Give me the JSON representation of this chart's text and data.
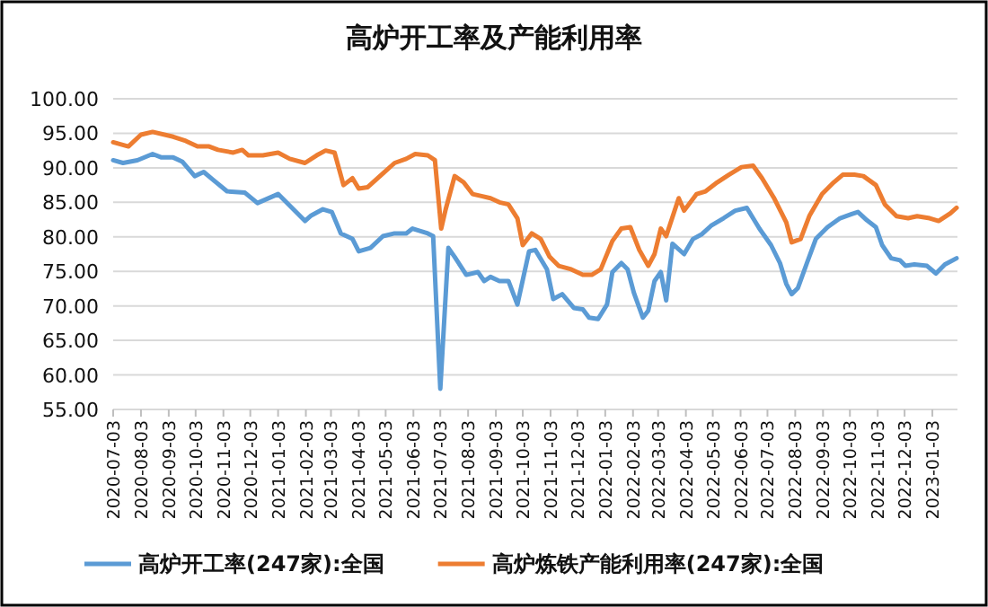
{
  "chart_data": {
    "type": "line",
    "title": "高炉开工率及产能利用率",
    "xlim": [
      "2020-07-03",
      "2023-01-31"
    ],
    "xticks": [
      "2020-07-03",
      "2020-08-03",
      "2020-09-03",
      "2020-10-03",
      "2020-11-03",
      "2020-12-03",
      "2021-01-03",
      "2021-02-03",
      "2021-03-03",
      "2021-04-03",
      "2021-05-03",
      "2021-06-03",
      "2021-07-03",
      "2021-08-03",
      "2021-09-03",
      "2021-10-03",
      "2021-11-03",
      "2021-12-03",
      "2022-01-03",
      "2022-02-03",
      "2022-03-03",
      "2022-04-03",
      "2022-05-03",
      "2022-06-03",
      "2022-07-03",
      "2022-08-03",
      "2022-09-03",
      "2022-10-03",
      "2022-11-03",
      "2022-12-03",
      "2023-01-03"
    ],
    "ylim": [
      55,
      100
    ],
    "yticks": [
      {
        "value": 55,
        "label": "55.00"
      },
      {
        "value": 60,
        "label": "60.00"
      },
      {
        "value": 65,
        "label": "65.00"
      },
      {
        "value": 70,
        "label": "70.00"
      },
      {
        "value": 75,
        "label": "75.00"
      },
      {
        "value": 80,
        "label": "80.00"
      },
      {
        "value": 85,
        "label": "85.00"
      },
      {
        "value": 90,
        "label": "90.00"
      },
      {
        "value": 95,
        "label": "95.00"
      },
      {
        "value": 100,
        "label": "100.00"
      }
    ],
    "grid": "y",
    "legend": "bottom",
    "series": [
      {
        "name": "高炉开工率(247家):全国",
        "color": "#5b9bd5",
        "x": [
          "2020-07-03",
          "2020-07-14",
          "2020-07-30",
          "2020-08-16",
          "2020-08-26",
          "2020-09-08",
          "2020-09-18",
          "2020-10-02",
          "2020-10-12",
          "2020-10-22",
          "2020-11-07",
          "2020-11-27",
          "2020-12-11",
          "2021-01-03",
          "2021-01-20",
          "2021-02-02",
          "2021-02-09",
          "2021-02-22",
          "2021-03-04",
          "2021-03-14",
          "2021-03-27",
          "2021-04-03",
          "2021-04-16",
          "2021-04-30",
          "2021-05-13",
          "2021-05-26",
          "2021-06-02",
          "2021-06-19",
          "2021-06-25",
          "2021-07-03",
          "2021-07-12",
          "2021-07-19",
          "2021-08-01",
          "2021-08-14",
          "2021-08-21",
          "2021-08-28",
          "2021-09-07",
          "2021-09-17",
          "2021-09-27",
          "2021-10-10",
          "2021-10-17",
          "2021-10-30",
          "2021-11-06",
          "2021-11-16",
          "2021-11-29",
          "2021-12-09",
          "2021-12-16",
          "2021-12-26",
          "2022-01-05",
          "2022-01-11",
          "2022-01-21",
          "2022-01-28",
          "2022-02-04",
          "2022-02-14",
          "2022-02-20",
          "2022-02-27",
          "2022-03-06",
          "2022-03-12",
          "2022-03-19",
          "2022-04-01",
          "2022-04-11",
          "2022-04-21",
          "2022-05-01",
          "2022-05-15",
          "2022-05-28",
          "2022-06-10",
          "2022-06-24",
          "2022-07-07",
          "2022-07-17",
          "2022-07-24",
          "2022-07-30",
          "2022-08-06",
          "2022-08-16",
          "2022-08-26",
          "2022-09-08",
          "2022-09-22",
          "2022-10-05",
          "2022-10-12",
          "2022-10-22",
          "2022-11-01",
          "2022-11-08",
          "2022-11-18",
          "2022-11-28",
          "2022-12-04",
          "2022-12-14",
          "2022-12-28",
          "2023-01-07",
          "2023-01-17",
          "2023-01-30"
        ],
        "values": [
          91.1,
          90.7,
          91.1,
          92.0,
          91.5,
          91.5,
          90.9,
          88.8,
          89.4,
          88.3,
          86.6,
          86.4,
          84.9,
          86.2,
          84.0,
          82.3,
          83.1,
          84.0,
          83.6,
          80.5,
          79.7,
          77.9,
          78.4,
          80.1,
          80.5,
          80.5,
          81.2,
          80.5,
          80.1,
          58.0,
          78.4,
          77.1,
          74.5,
          74.9,
          73.6,
          74.2,
          73.6,
          73.6,
          70.2,
          77.9,
          78.1,
          75.3,
          71.0,
          71.7,
          69.7,
          69.5,
          68.3,
          68.1,
          70.2,
          74.9,
          76.2,
          75.3,
          71.9,
          68.3,
          69.3,
          73.6,
          74.9,
          70.8,
          79.0,
          77.5,
          79.7,
          80.4,
          81.6,
          82.7,
          83.8,
          84.2,
          81.2,
          78.8,
          76.2,
          73.2,
          71.7,
          72.6,
          76.2,
          79.7,
          81.4,
          82.7,
          83.3,
          83.6,
          82.4,
          81.4,
          78.8,
          76.9,
          76.6,
          75.8,
          76.0,
          75.8,
          74.7,
          76.0,
          76.9
        ]
      },
      {
        "name": "高炉炼铁产能利用率(247家):全国",
        "color": "#ed7d31",
        "x": [
          "2020-07-03",
          "2020-07-20",
          "2020-08-03",
          "2020-08-16",
          "2020-09-08",
          "2020-09-22",
          "2020-10-05",
          "2020-10-18",
          "2020-10-28",
          "2020-11-14",
          "2020-11-24",
          "2020-12-01",
          "2020-12-17",
          "2021-01-03",
          "2021-01-16",
          "2021-02-02",
          "2021-02-15",
          "2021-02-25",
          "2021-03-07",
          "2021-03-17",
          "2021-03-27",
          "2021-04-03",
          "2021-04-13",
          "2021-04-30",
          "2021-05-13",
          "2021-05-26",
          "2021-06-05",
          "2021-06-19",
          "2021-06-27",
          "2021-07-04",
          "2021-07-09",
          "2021-07-19",
          "2021-07-29",
          "2021-08-08",
          "2021-08-18",
          "2021-08-28",
          "2021-09-07",
          "2021-09-17",
          "2021-09-27",
          "2021-10-03",
          "2021-10-13",
          "2021-10-23",
          "2021-11-02",
          "2021-11-12",
          "2021-11-26",
          "2021-12-09",
          "2021-12-19",
          "2021-12-29",
          "2022-01-11",
          "2022-01-21",
          "2022-01-31",
          "2022-02-10",
          "2022-02-20",
          "2022-02-27",
          "2022-03-06",
          "2022-03-12",
          "2022-03-26",
          "2022-04-01",
          "2022-04-15",
          "2022-04-25",
          "2022-05-08",
          "2022-05-21",
          "2022-06-04",
          "2022-06-17",
          "2022-06-27",
          "2022-07-10",
          "2022-07-24",
          "2022-07-30",
          "2022-08-09",
          "2022-08-19",
          "2022-09-02",
          "2022-09-15",
          "2022-09-25",
          "2022-10-08",
          "2022-10-18",
          "2022-11-01",
          "2022-11-11",
          "2022-11-24",
          "2022-12-07",
          "2022-12-17",
          "2022-12-31",
          "2023-01-10",
          "2023-01-23",
          "2023-01-30"
        ],
        "values": [
          93.7,
          93.1,
          94.8,
          95.2,
          94.5,
          93.9,
          93.1,
          93.1,
          92.6,
          92.2,
          92.6,
          91.8,
          91.8,
          92.2,
          91.3,
          90.7,
          91.8,
          92.5,
          92.2,
          87.5,
          88.5,
          87.0,
          87.2,
          89.2,
          90.7,
          91.3,
          92.0,
          91.8,
          91.1,
          81.2,
          84.0,
          88.8,
          87.9,
          86.2,
          85.9,
          85.6,
          85.0,
          84.7,
          82.7,
          78.8,
          80.5,
          79.7,
          77.1,
          75.8,
          75.3,
          74.5,
          74.5,
          75.3,
          79.4,
          81.2,
          81.4,
          78.1,
          75.8,
          77.5,
          81.2,
          80.1,
          85.6,
          83.8,
          86.2,
          86.6,
          87.9,
          89.0,
          90.1,
          90.3,
          88.5,
          85.7,
          82.1,
          79.2,
          79.7,
          83.1,
          86.2,
          87.9,
          89.0,
          89.0,
          88.8,
          87.5,
          84.7,
          83.0,
          82.7,
          83.0,
          82.7,
          82.3,
          83.4,
          84.2
        ]
      }
    ]
  }
}
